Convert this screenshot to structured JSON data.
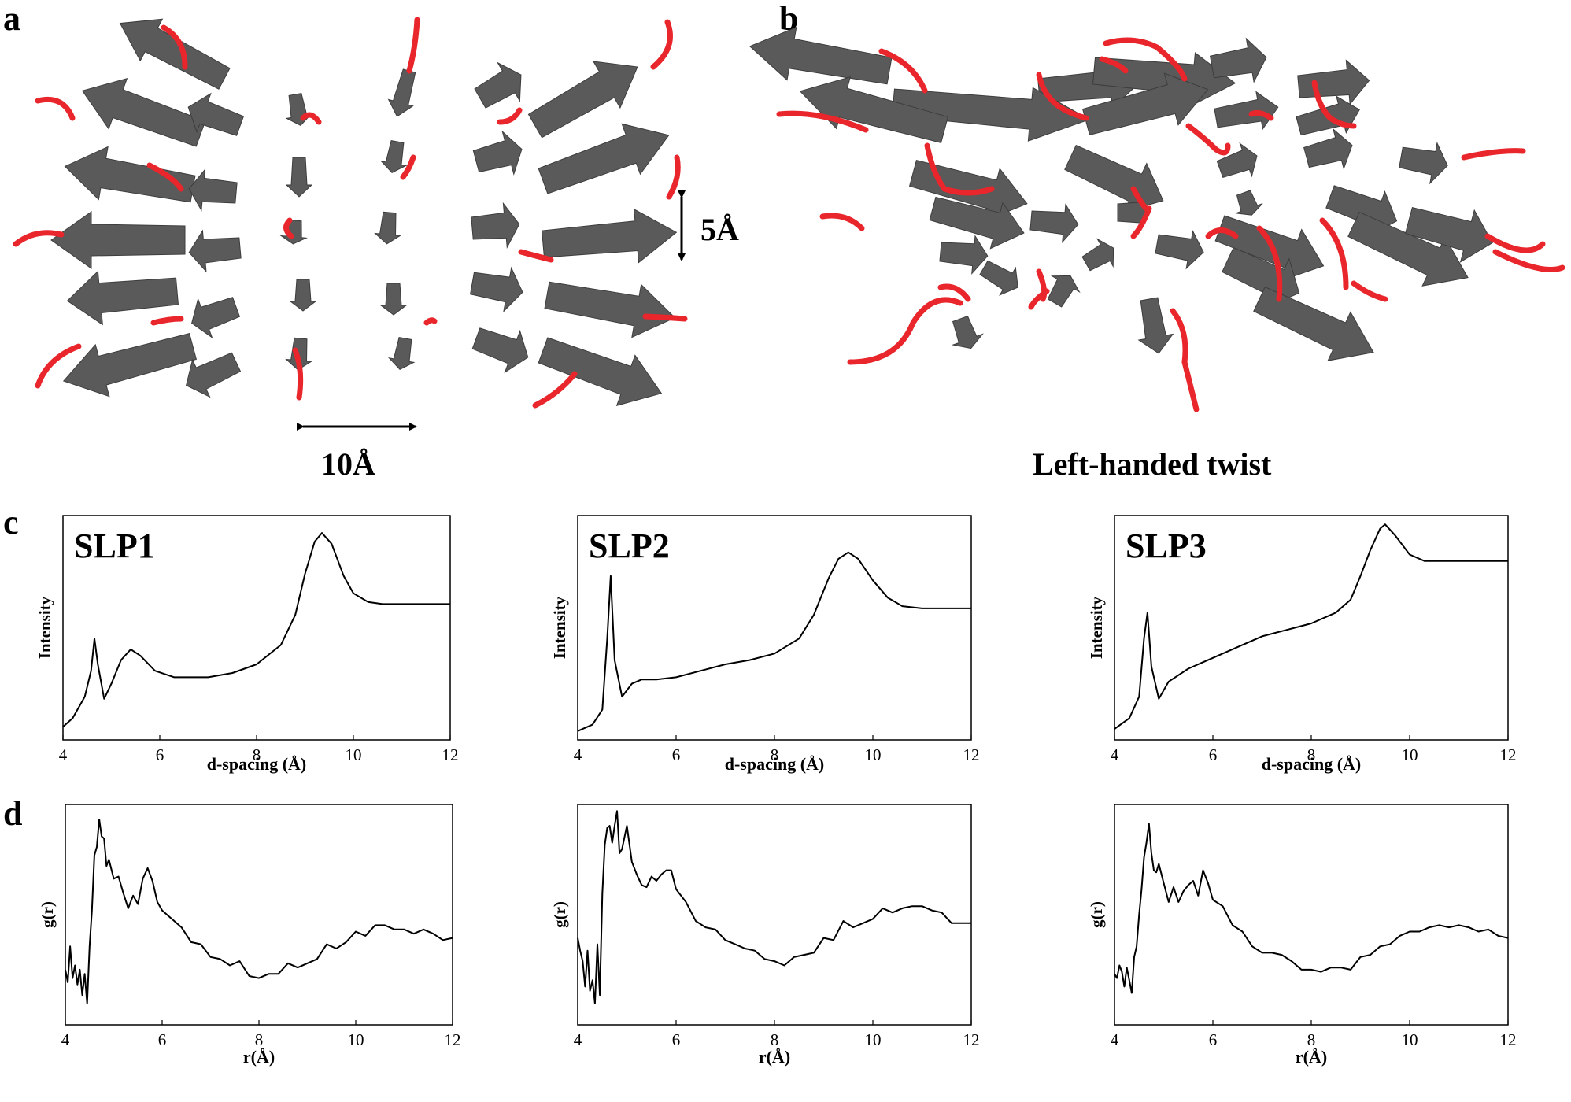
{
  "panels": {
    "a": {
      "letter": "a",
      "scale_horizontal": "10Å",
      "scale_vertical": "5Å"
    },
    "b": {
      "letter": "b",
      "caption": "Left-handed twist"
    },
    "c": {
      "letter": "c"
    },
    "d": {
      "letter": "d"
    }
  },
  "colors": {
    "strand": "#5a5a5a",
    "coil": "#e8262b",
    "line": "#000000"
  },
  "chart_data": [
    {
      "panel": "c",
      "label": "SLP1",
      "type": "line",
      "xlabel": "d-spacing (Å)",
      "ylabel": "Intensity",
      "xlim": [
        4,
        12
      ],
      "xticks": [
        4,
        6,
        8,
        10,
        12
      ],
      "x": [
        4.0,
        4.2,
        4.45,
        4.58,
        4.65,
        4.72,
        4.85,
        5.0,
        5.2,
        5.4,
        5.6,
        5.9,
        6.3,
        7.0,
        7.5,
        8.0,
        8.5,
        8.8,
        9.0,
        9.2,
        9.35,
        9.55,
        9.8,
        10.0,
        10.3,
        10.6,
        11.0,
        11.5,
        12.0
      ],
      "y": [
        0.04,
        0.08,
        0.18,
        0.3,
        0.45,
        0.33,
        0.17,
        0.24,
        0.35,
        0.4,
        0.37,
        0.3,
        0.27,
        0.27,
        0.29,
        0.33,
        0.42,
        0.56,
        0.75,
        0.9,
        0.94,
        0.89,
        0.74,
        0.66,
        0.62,
        0.61,
        0.61,
        0.61,
        0.61
      ]
    },
    {
      "panel": "c",
      "label": "SLP2",
      "type": "line",
      "xlabel": "d-spacing (Å)",
      "ylabel": "Intensity",
      "xlim": [
        4,
        12
      ],
      "xticks": [
        4,
        6,
        8,
        10,
        12
      ],
      "x": [
        4.0,
        4.3,
        4.5,
        4.6,
        4.67,
        4.75,
        4.9,
        5.1,
        5.3,
        5.6,
        6.0,
        6.5,
        7.0,
        7.5,
        8.0,
        8.5,
        8.8,
        9.1,
        9.3,
        9.5,
        9.7,
        10.0,
        10.3,
        10.6,
        11.0,
        11.5,
        12.0
      ],
      "y": [
        0.02,
        0.05,
        0.12,
        0.45,
        0.74,
        0.35,
        0.18,
        0.24,
        0.26,
        0.26,
        0.27,
        0.3,
        0.33,
        0.35,
        0.38,
        0.45,
        0.56,
        0.73,
        0.82,
        0.85,
        0.82,
        0.72,
        0.64,
        0.6,
        0.59,
        0.59,
        0.59
      ]
    },
    {
      "panel": "c",
      "label": "SLP3",
      "type": "line",
      "xlabel": "d-spacing (Å)",
      "ylabel": "Intensity",
      "xlim": [
        4,
        12
      ],
      "xticks": [
        4,
        6,
        8,
        10,
        12
      ],
      "x": [
        4.0,
        4.3,
        4.5,
        4.6,
        4.67,
        4.75,
        4.9,
        5.1,
        5.5,
        6.0,
        6.5,
        7.0,
        7.5,
        8.0,
        8.5,
        8.8,
        9.0,
        9.2,
        9.4,
        9.5,
        9.7,
        10.0,
        10.3,
        10.6,
        11.0,
        11.5,
        12.0
      ],
      "y": [
        0.03,
        0.08,
        0.18,
        0.45,
        0.57,
        0.32,
        0.17,
        0.25,
        0.31,
        0.36,
        0.41,
        0.46,
        0.49,
        0.52,
        0.57,
        0.63,
        0.74,
        0.86,
        0.96,
        0.98,
        0.93,
        0.84,
        0.81,
        0.81,
        0.81,
        0.81,
        0.81
      ]
    },
    {
      "panel": "d",
      "type": "line",
      "xlabel": "r(Å)",
      "ylabel": "g(r)",
      "xlim": [
        4,
        12
      ],
      "xticks": [
        4,
        6,
        8,
        10,
        12
      ],
      "x": [
        4.0,
        4.05,
        4.1,
        4.15,
        4.2,
        4.25,
        4.3,
        4.35,
        4.4,
        4.45,
        4.5,
        4.55,
        4.6,
        4.65,
        4.7,
        4.75,
        4.8,
        4.85,
        4.9,
        5.0,
        5.1,
        5.2,
        5.3,
        5.4,
        5.5,
        5.6,
        5.7,
        5.8,
        5.9,
        6.0,
        6.2,
        6.4,
        6.6,
        6.8,
        7.0,
        7.2,
        7.4,
        7.6,
        7.8,
        8.0,
        8.2,
        8.4,
        8.6,
        8.8,
        9.0,
        9.2,
        9.4,
        9.6,
        9.8,
        10.0,
        10.2,
        10.4,
        10.6,
        10.8,
        11.0,
        11.2,
        11.4,
        11.6,
        11.8,
        12.0
      ],
      "y": [
        0.24,
        0.18,
        0.35,
        0.2,
        0.26,
        0.17,
        0.24,
        0.12,
        0.22,
        0.08,
        0.35,
        0.52,
        0.78,
        0.82,
        0.95,
        0.87,
        0.86,
        0.73,
        0.76,
        0.67,
        0.68,
        0.6,
        0.53,
        0.59,
        0.55,
        0.67,
        0.72,
        0.66,
        0.56,
        0.52,
        0.48,
        0.44,
        0.37,
        0.36,
        0.3,
        0.29,
        0.26,
        0.28,
        0.21,
        0.2,
        0.22,
        0.22,
        0.27,
        0.25,
        0.27,
        0.29,
        0.36,
        0.34,
        0.37,
        0.42,
        0.4,
        0.45,
        0.45,
        0.43,
        0.43,
        0.41,
        0.43,
        0.41,
        0.38,
        0.39
      ]
    },
    {
      "panel": "d",
      "type": "line",
      "xlabel": "r(Å)",
      "ylabel": "g(r)",
      "xlim": [
        4,
        12
      ],
      "xticks": [
        4,
        6,
        8,
        10,
        12
      ],
      "x": [
        4.0,
        4.05,
        4.1,
        4.15,
        4.2,
        4.25,
        4.3,
        4.35,
        4.4,
        4.45,
        4.5,
        4.55,
        4.6,
        4.65,
        4.7,
        4.75,
        4.8,
        4.85,
        4.9,
        5.0,
        5.1,
        5.2,
        5.3,
        5.4,
        5.5,
        5.6,
        5.7,
        5.8,
        5.9,
        6.0,
        6.2,
        6.4,
        6.6,
        6.8,
        7.0,
        7.2,
        7.4,
        7.6,
        7.8,
        8.0,
        8.2,
        8.4,
        8.6,
        8.8,
        9.0,
        9.2,
        9.4,
        9.6,
        9.8,
        10.0,
        10.2,
        10.4,
        10.6,
        10.8,
        11.0,
        11.2,
        11.4,
        11.6,
        11.8,
        12.0
      ],
      "y": [
        0.39,
        0.33,
        0.28,
        0.16,
        0.33,
        0.14,
        0.19,
        0.08,
        0.36,
        0.12,
        0.6,
        0.83,
        0.91,
        0.92,
        0.84,
        0.92,
        0.99,
        0.79,
        0.81,
        0.92,
        0.75,
        0.69,
        0.64,
        0.63,
        0.68,
        0.66,
        0.69,
        0.71,
        0.71,
        0.62,
        0.56,
        0.47,
        0.44,
        0.43,
        0.38,
        0.36,
        0.34,
        0.33,
        0.29,
        0.28,
        0.26,
        0.3,
        0.31,
        0.32,
        0.39,
        0.38,
        0.47,
        0.44,
        0.46,
        0.48,
        0.53,
        0.51,
        0.53,
        0.54,
        0.54,
        0.52,
        0.51,
        0.46,
        0.46,
        0.46
      ]
    },
    {
      "panel": "d",
      "type": "line",
      "xlabel": "r(Å)",
      "ylabel": "g(r)",
      "xlim": [
        4,
        12
      ],
      "xticks": [
        4,
        6,
        8,
        10,
        12
      ],
      "x": [
        4.0,
        4.05,
        4.1,
        4.15,
        4.2,
        4.25,
        4.3,
        4.35,
        4.4,
        4.45,
        4.5,
        4.55,
        4.6,
        4.65,
        4.7,
        4.75,
        4.8,
        4.85,
        4.9,
        5.0,
        5.1,
        5.2,
        5.3,
        5.4,
        5.5,
        5.6,
        5.7,
        5.8,
        5.9,
        6.0,
        6.2,
        6.4,
        6.6,
        6.8,
        7.0,
        7.2,
        7.4,
        7.6,
        7.8,
        8.0,
        8.2,
        8.4,
        8.6,
        8.8,
        9.0,
        9.2,
        9.4,
        9.6,
        9.8,
        10.0,
        10.2,
        10.4,
        10.6,
        10.8,
        11.0,
        11.2,
        11.4,
        11.6,
        11.8,
        12.0
      ],
      "y": [
        0.22,
        0.2,
        0.26,
        0.23,
        0.16,
        0.25,
        0.19,
        0.13,
        0.3,
        0.35,
        0.5,
        0.62,
        0.77,
        0.84,
        0.93,
        0.79,
        0.71,
        0.7,
        0.74,
        0.65,
        0.56,
        0.63,
        0.56,
        0.61,
        0.64,
        0.66,
        0.59,
        0.71,
        0.65,
        0.57,
        0.54,
        0.45,
        0.42,
        0.35,
        0.32,
        0.32,
        0.31,
        0.28,
        0.24,
        0.24,
        0.23,
        0.25,
        0.25,
        0.24,
        0.3,
        0.31,
        0.35,
        0.36,
        0.4,
        0.42,
        0.42,
        0.44,
        0.45,
        0.44,
        0.45,
        0.44,
        0.42,
        0.43,
        0.4,
        0.39
      ]
    }
  ]
}
